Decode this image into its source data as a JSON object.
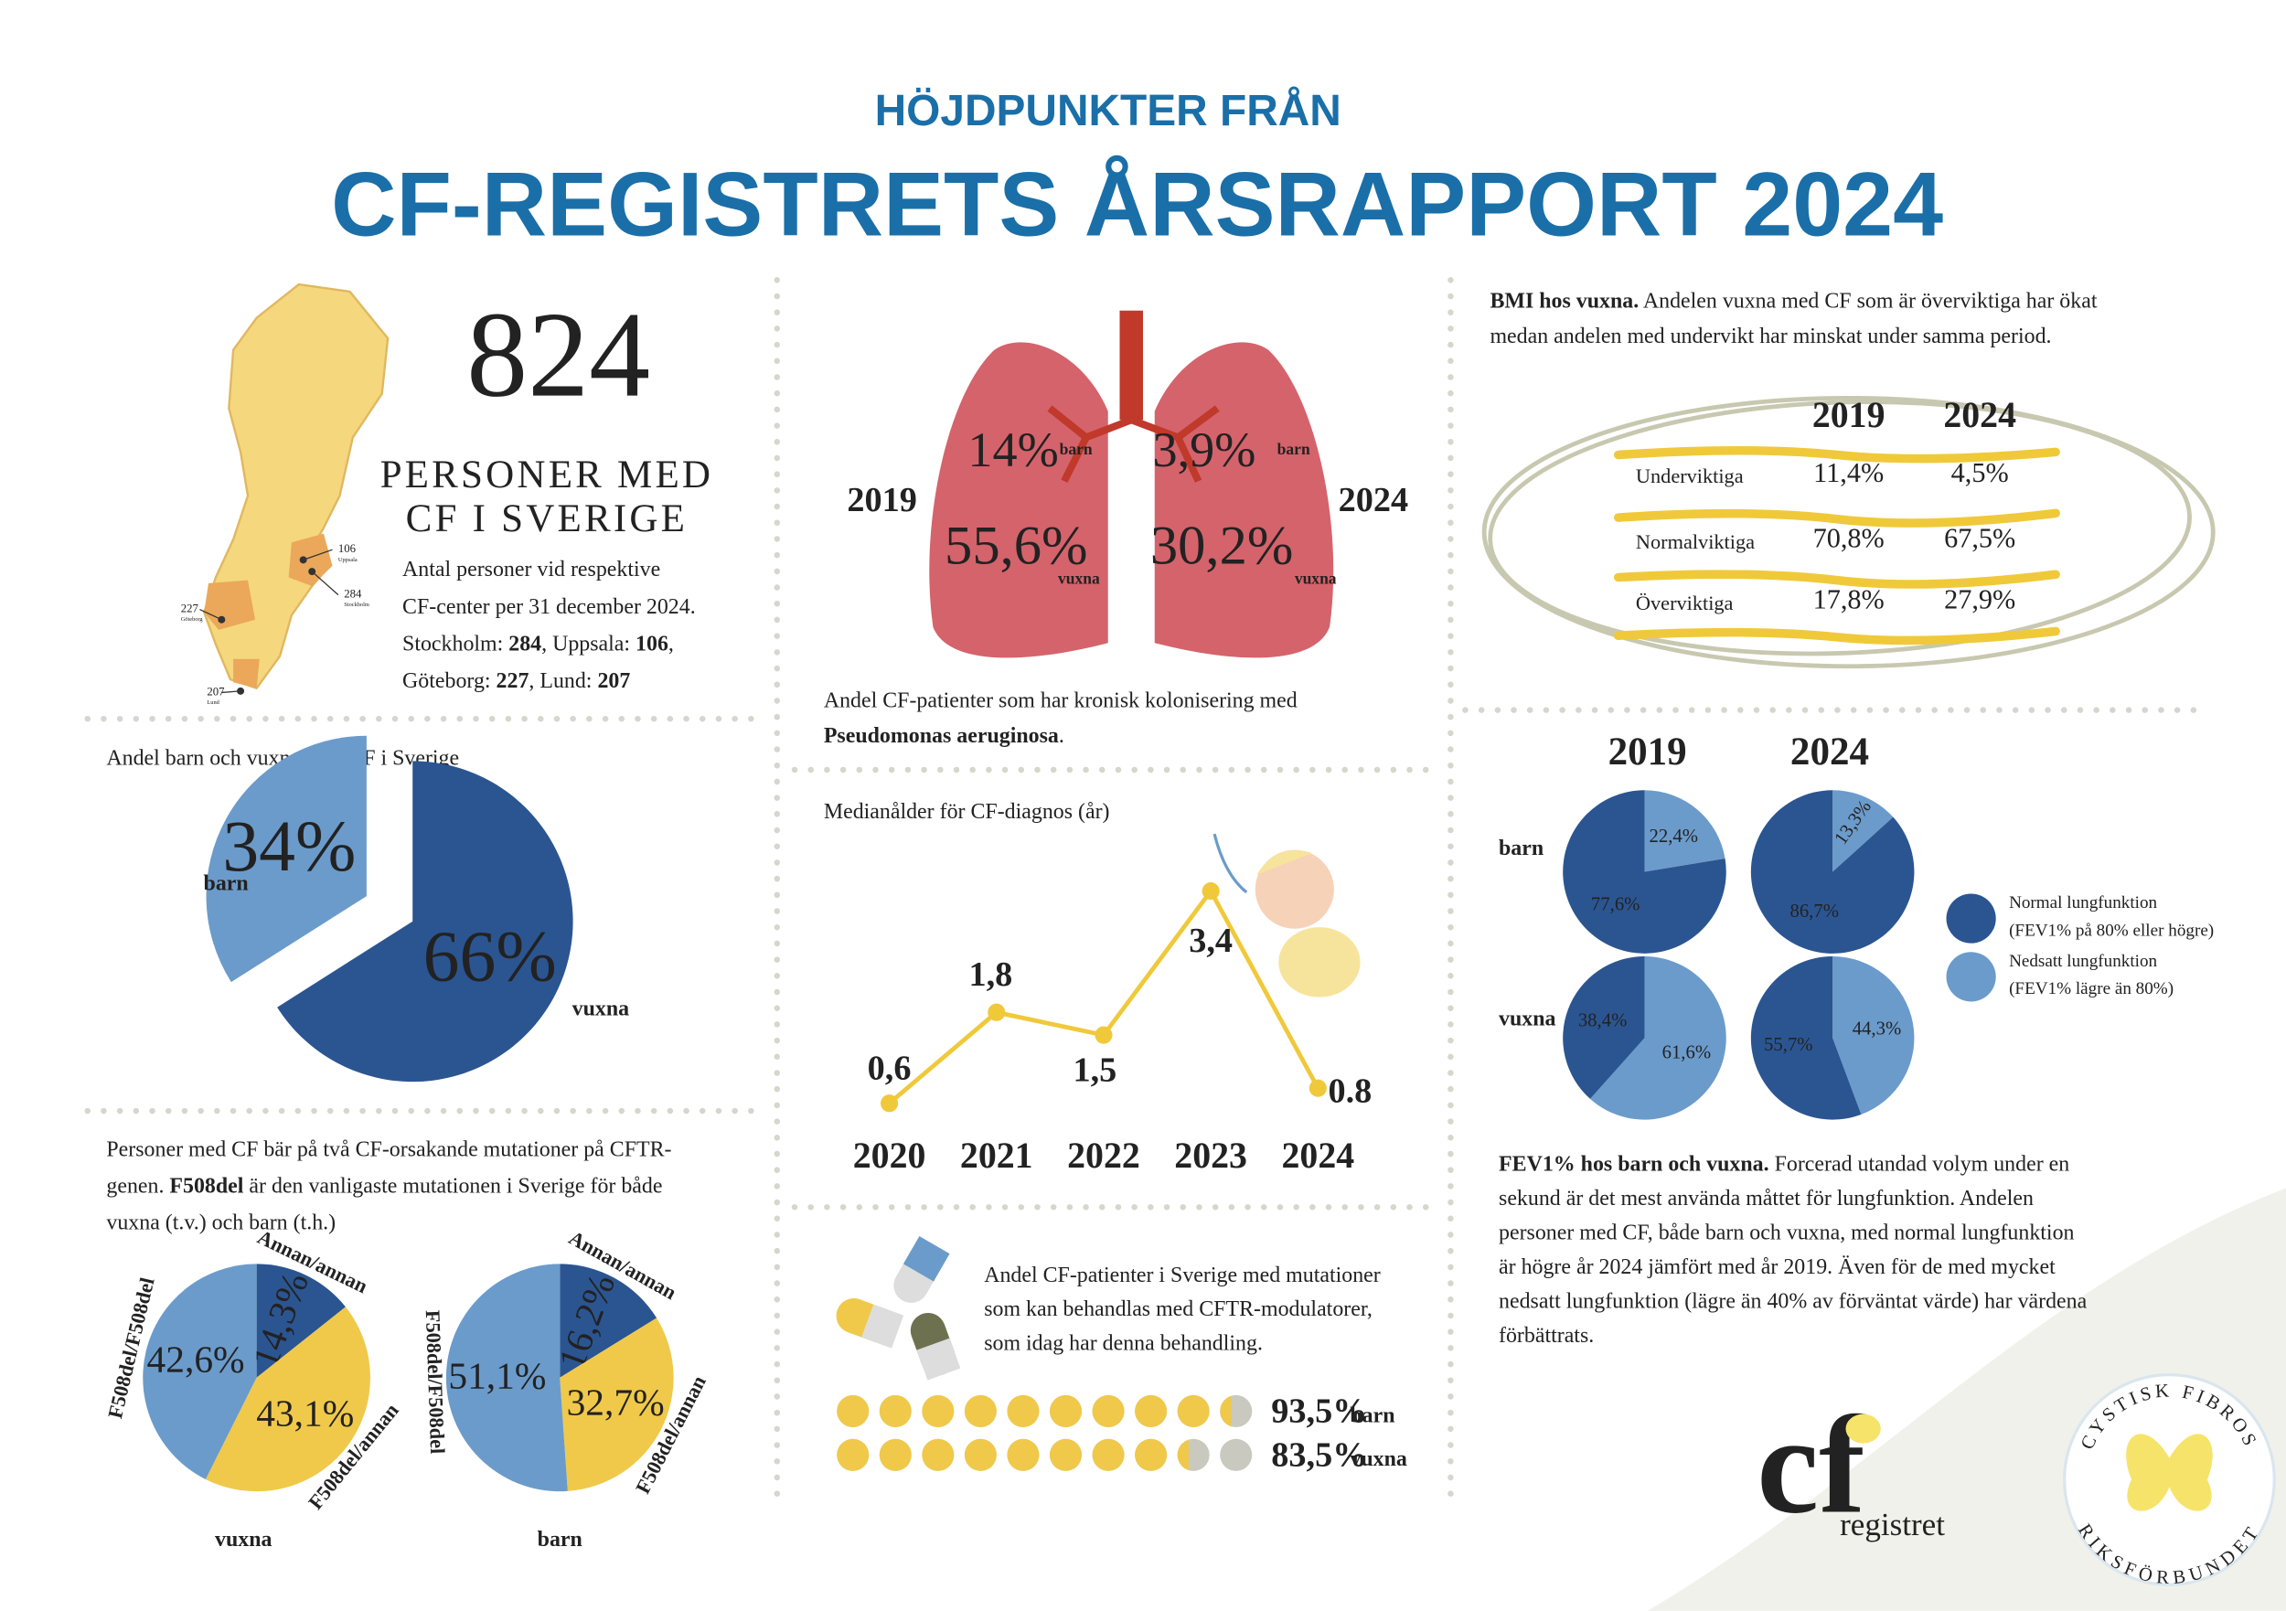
{
  "header": {
    "kicker": "HÖJDPUNKTER FRÅN",
    "title": "CF-REGISTRETS ÅRSRAPPORT 2024"
  },
  "population": {
    "total": "824",
    "heading": [
      "PERSONER MED",
      "CF I SVERIGE"
    ],
    "note": [
      [
        "Antal personer vid respektive"
      ],
      [
        "CF-center per 31 december 2024."
      ],
      [
        "Stockholm: ",
        {
          "b": "284"
        },
        ", Uppsala: ",
        {
          "b": "106"
        },
        ","
      ],
      [
        "Göteborg: ",
        {
          "b": "227"
        },
        ", Lund: ",
        {
          "b": "207"
        }
      ]
    ],
    "map_labels": [
      {
        "value": 106,
        "city": "Uppsala"
      },
      {
        "value": 284,
        "city": "Stockholm"
      },
      {
        "value": 227,
        "city": "Göteborg"
      },
      {
        "value": 207,
        "city": "Lund"
      }
    ]
  },
  "pseudomonas": {
    "lungs": [
      {
        "year": "2019",
        "barn": "14%",
        "vuxna": "55,6%"
      },
      {
        "year": "2024",
        "barn": "3,9%",
        "vuxna": "30,2%"
      }
    ],
    "lung_labels": [
      "barn",
      "vuxna"
    ],
    "caption": [
      [
        "Andel CF-patienter som har kronisk kolonisering med"
      ],
      [
        {
          "b": "Pseudomonas aeruginosa"
        },
        "."
      ]
    ]
  },
  "children_adults": {
    "type": "pie",
    "title": "Andel barn och vuxna med CF i Sverige",
    "categories": [
      "barn",
      "vuxna"
    ],
    "values": [
      34,
      66
    ],
    "value_labels": [
      "34%",
      "66%"
    ],
    "colors": [
      "#6b9bcb",
      "#2b5591"
    ]
  },
  "diagnosis_age": {
    "type": "line",
    "title": "Medianålder för CF-diagnos (år)",
    "categories": [
      "2020",
      "2021",
      "2022",
      "2023",
      "2024"
    ],
    "values": [
      0.6,
      1.8,
      1.5,
      3.4,
      0.8
    ],
    "value_labels": [
      "0,6",
      "1,8",
      "1,5",
      "3,4",
      "0.8"
    ],
    "color": "#f0c93a"
  },
  "mutations": {
    "type": "pie",
    "text": [
      [
        "Personer med CF bär på två CF-orsakande mutationer på CFTR-"
      ],
      [
        "genen. ",
        {
          "b": "F508del"
        },
        " är den vanligaste mutationen i Sverige för både"
      ],
      [
        "vuxna (t.v.) och barn (t.h.)"
      ]
    ],
    "categories": [
      "Annan/annan",
      "F508del/annan",
      "F508del/F508del"
    ],
    "colors": [
      "#2b5591",
      "#f0c94a",
      "#6b9bcb"
    ],
    "pies": [
      {
        "name": "vuxna",
        "values": [
          14.3,
          43.1,
          42.6
        ],
        "value_labels": [
          "14,3%",
          "43,1%",
          "42,6%"
        ]
      },
      {
        "name": "barn",
        "values": [
          16.2,
          32.7,
          51.1
        ],
        "value_labels": [
          "16,2%",
          "32,7%",
          "51,1%"
        ]
      }
    ]
  },
  "modulators": {
    "text": [
      [
        "Andel CF-patienter i Sverige med mutationer"
      ],
      [
        "som kan behandlas med CFTR-modulatorer,"
      ],
      [
        "som idag har denna behandling."
      ]
    ],
    "rows": [
      {
        "name": "barn",
        "value": 93.5,
        "label": "93,5%"
      },
      {
        "name": "vuxna",
        "value": 83.5,
        "label": "83,5%"
      }
    ],
    "colors": {
      "filled": "#f0c94a",
      "empty": "#c9c9c0"
    }
  },
  "bmi": {
    "text": [
      [
        {
          "b": "BMI hos vuxna."
        },
        " Andelen vuxna med CF som är överviktiga har ökat"
      ],
      [
        "medan andelen med undervikt har minskat under samma period."
      ]
    ],
    "columns": [
      "2019",
      "2024"
    ],
    "rows": [
      [
        "Underviktiga",
        "11,4%",
        "4,5%"
      ],
      [
        "Normalviktiga",
        "70,8%",
        "67,5%"
      ],
      [
        "Överviktiga",
        "17,8%",
        "27,9%"
      ]
    ]
  },
  "fev1": {
    "type": "pie",
    "years": [
      "2019",
      "2024"
    ],
    "groups": [
      "barn",
      "vuxna"
    ],
    "categories": [
      "Normal lungfunktion",
      "Nedsatt lungfunktion"
    ],
    "category_notes": [
      "(FEV1% på 80% eller högre)",
      "(FEV1% lägre än 80%)"
    ],
    "colors": [
      "#2b5591",
      "#6b9bcb"
    ],
    "pies": [
      [
        {
          "values": [
            77.6,
            22.4
          ],
          "value_labels": [
            "77,6%",
            "22,4%"
          ]
        },
        {
          "values": [
            86.7,
            13.3
          ],
          "value_labels": [
            "86,7%",
            "13,3%"
          ]
        }
      ],
      [
        {
          "values": [
            38.4,
            61.6
          ],
          "value_labels": [
            "38,4%",
            "61,6%"
          ]
        },
        {
          "values": [
            55.7,
            44.3
          ],
          "value_labels": [
            "55,7%",
            "44,3%"
          ]
        }
      ]
    ],
    "text": [
      [
        {
          "b": "FEV1% hos barn och vuxna."
        },
        " Forcerad utandad volym under en"
      ],
      [
        "sekund är det mest använda måttet för lungfunktion. Andelen"
      ],
      [
        "personer med CF, både barn och vuxna, med normal lungfunktion"
      ],
      [
        "är högre år 2024 jämfört med år 2019. Även för de med mycket"
      ],
      [
        "nedsatt lungfunktion (lägre än 40% av förväntat värde) har värdena"
      ],
      [
        "förbättrats."
      ]
    ]
  },
  "logos": {
    "cf": "cf",
    "registret": "registret",
    "org_top": "CYSTISK FIBROS",
    "org_bottom": "RIKSFÖRBUNDET"
  }
}
